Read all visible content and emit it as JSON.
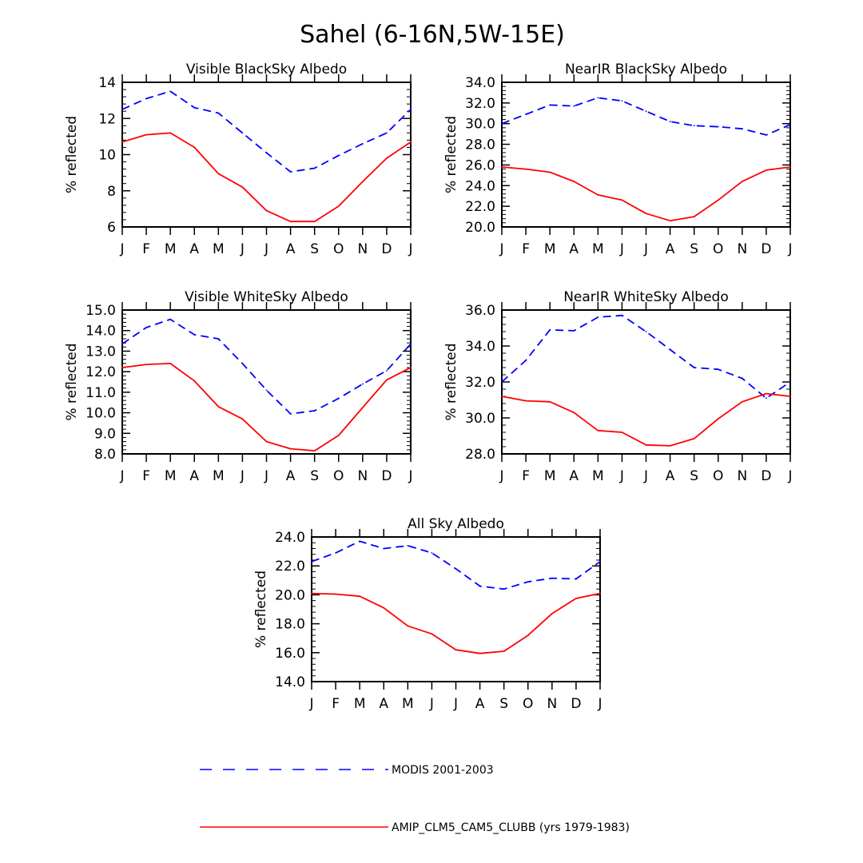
{
  "figure": {
    "title": "Sahel (6-16N,5W-15E)",
    "months": [
      "J",
      "F",
      "M",
      "A",
      "M",
      "J",
      "J",
      "A",
      "S",
      "O",
      "N",
      "D",
      "J"
    ],
    "colors": {
      "modis": "#0000ff",
      "model": "#ff0000",
      "axis": "#000000"
    }
  },
  "legend": {
    "modis_label": "MODIS 2001-2003",
    "model_label": "AMIP_CLM5_CAM5_CLUBB (yrs 1979-1983)"
  },
  "chart_data": [
    {
      "type": "line",
      "title": "Visible BlackSky Albedo",
      "ylabel": "% reflected",
      "ylim": [
        6,
        14
      ],
      "yticks": [
        6,
        8,
        10,
        12,
        14
      ],
      "ytick_labels": [
        "6",
        "8",
        "10",
        "12",
        "14"
      ],
      "x": [
        "J",
        "F",
        "M",
        "A",
        "M",
        "J",
        "J",
        "A",
        "S",
        "O",
        "N",
        "D",
        "J"
      ],
      "series": [
        {
          "name": "MODIS 2001-2003",
          "style": "dashed",
          "values": [
            12.5,
            13.1,
            13.5,
            12.6,
            12.3,
            11.2,
            10.1,
            9.05,
            9.25,
            9.95,
            10.6,
            11.2,
            12.5
          ]
        },
        {
          "name": "AMIP_CLM5_CAM5_CLUBB (yrs 1979-1983)",
          "style": "solid",
          "values": [
            10.7,
            11.1,
            11.2,
            10.4,
            8.95,
            8.2,
            6.9,
            6.3,
            6.3,
            7.15,
            8.5,
            9.8,
            10.7
          ]
        }
      ]
    },
    {
      "type": "line",
      "title": "NearIR BlackSky Albedo",
      "ylabel": "% reflected",
      "ylim": [
        20,
        34
      ],
      "yticks": [
        20,
        22,
        24,
        26,
        28,
        30,
        32,
        34
      ],
      "ytick_labels": [
        "20.0",
        "22.0",
        "24.0",
        "26.0",
        "28.0",
        "30.0",
        "32.0",
        "34.0"
      ],
      "x": [
        "J",
        "F",
        "M",
        "A",
        "M",
        "J",
        "J",
        "A",
        "S",
        "O",
        "N",
        "D",
        "J"
      ],
      "series": [
        {
          "name": "MODIS 2001-2003",
          "style": "dashed",
          "values": [
            30.0,
            30.9,
            31.8,
            31.7,
            32.5,
            32.2,
            31.2,
            30.2,
            29.8,
            29.7,
            29.5,
            28.9,
            29.9
          ]
        },
        {
          "name": "AMIP_CLM5_CAM5_CLUBB (yrs 1979-1983)",
          "style": "solid",
          "values": [
            25.8,
            25.6,
            25.3,
            24.4,
            23.1,
            22.6,
            21.3,
            20.6,
            21.0,
            22.6,
            24.4,
            25.5,
            25.8
          ]
        }
      ]
    },
    {
      "type": "line",
      "title": "Visible WhiteSky Albedo",
      "ylabel": "% reflected",
      "ylim": [
        8,
        15
      ],
      "yticks": [
        8,
        9,
        10,
        11,
        12,
        13,
        14,
        15
      ],
      "ytick_labels": [
        "8.0",
        "9.0",
        "10.0",
        "11.0",
        "12.0",
        "13.0",
        "14.0",
        "15.0"
      ],
      "x": [
        "J",
        "F",
        "M",
        "A",
        "M",
        "J",
        "J",
        "A",
        "S",
        "O",
        "N",
        "D",
        "J"
      ],
      "series": [
        {
          "name": "MODIS 2001-2003",
          "style": "dashed",
          "values": [
            13.35,
            14.15,
            14.55,
            13.8,
            13.6,
            12.4,
            11.1,
            9.95,
            10.1,
            10.7,
            11.4,
            12.05,
            13.35
          ]
        },
        {
          "name": "AMIP_CLM5_CAM5_CLUBB (yrs 1979-1983)",
          "style": "solid",
          "values": [
            12.2,
            12.35,
            12.4,
            11.55,
            10.3,
            9.7,
            8.6,
            8.25,
            8.15,
            8.9,
            10.25,
            11.6,
            12.2
          ]
        }
      ]
    },
    {
      "type": "line",
      "title": "NearIR WhiteSky Albedo",
      "ylabel": "% reflected",
      "ylim": [
        28,
        36
      ],
      "yticks": [
        28,
        30,
        32,
        34,
        36
      ],
      "ytick_labels": [
        "28.0",
        "30.0",
        "32.0",
        "34.0",
        "36.0"
      ],
      "x": [
        "J",
        "F",
        "M",
        "A",
        "M",
        "J",
        "J",
        "A",
        "S",
        "O",
        "N",
        "D",
        "J"
      ],
      "series": [
        {
          "name": "MODIS 2001-2003",
          "style": "dashed",
          "values": [
            32.0,
            33.2,
            34.9,
            34.85,
            35.6,
            35.7,
            34.8,
            33.8,
            32.8,
            32.7,
            32.2,
            31.1,
            32.0
          ]
        },
        {
          "name": "AMIP_CLM5_CAM5_CLUBB (yrs 1979-1983)",
          "style": "solid",
          "values": [
            31.2,
            30.95,
            30.9,
            30.3,
            29.3,
            29.2,
            28.5,
            28.45,
            28.85,
            29.95,
            30.9,
            31.35,
            31.2
          ]
        }
      ]
    },
    {
      "type": "line",
      "title": "All Sky Albedo",
      "ylabel": "% reflected",
      "ylim": [
        14,
        24
      ],
      "yticks": [
        14,
        16,
        18,
        20,
        22,
        24
      ],
      "ytick_labels": [
        "14.0",
        "16.0",
        "18.0",
        "20.0",
        "22.0",
        "24.0"
      ],
      "x": [
        "J",
        "F",
        "M",
        "A",
        "M",
        "J",
        "J",
        "A",
        "S",
        "O",
        "N",
        "D",
        "J"
      ],
      "series": [
        {
          "name": "MODIS 2001-2003",
          "style": "dashed",
          "values": [
            22.3,
            22.9,
            23.7,
            23.2,
            23.4,
            22.9,
            21.8,
            20.6,
            20.4,
            20.9,
            21.15,
            21.1,
            22.3
          ]
        },
        {
          "name": "AMIP_CLM5_CAM5_CLUBB (yrs 1979-1983)",
          "style": "solid",
          "values": [
            20.1,
            20.05,
            19.9,
            19.1,
            17.85,
            17.3,
            16.2,
            15.95,
            16.1,
            17.2,
            18.7,
            19.75,
            20.1
          ]
        }
      ]
    }
  ]
}
